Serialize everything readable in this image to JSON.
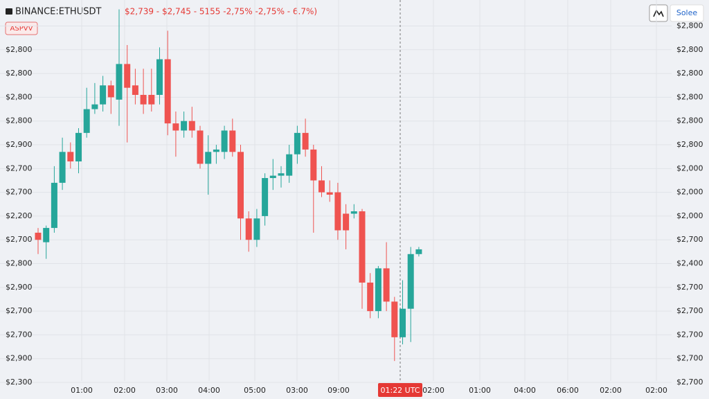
{
  "header": {
    "symbol": "BINANCE:ETHUSDT",
    "ohlc_text": "$2,739 - $2,745 - 5155 -2,75% -2,75% - 6.7%)",
    "badge": "ASPVV",
    "button": "Solee"
  },
  "chart_data": {
    "type": "candlestick",
    "up_color": "#26a69a",
    "down_color": "#ef5350",
    "grid": true,
    "open": [
      6.3,
      5.9,
      6.5,
      8.4,
      9.7,
      9.3,
      10.5,
      11.5,
      11.7,
      12.5,
      11.9,
      13.4,
      12.5,
      12.1,
      12.1,
      12.1,
      13.6,
      10.9,
      10.6,
      11.0,
      10.6,
      9.2,
      9.7,
      9.7,
      10.6,
      9.7,
      6.9,
      6.0,
      7.0,
      8.6,
      8.7,
      8.7,
      9.6,
      10.5,
      9.8,
      8.5,
      8.0,
      8.0,
      7.1,
      7.1,
      7.2,
      4.2,
      3.0,
      4.8,
      3.4,
      1.9,
      3.1,
      5.4
    ],
    "high": [
      6.5,
      6.6,
      9.1,
      10.3,
      10.1,
      10.7,
      12.4,
      12.6,
      12.9,
      12.7,
      15.7,
      14.2,
      13.2,
      13.2,
      13.2,
      14.1,
      14.8,
      11.4,
      11.4,
      11.6,
      10.8,
      10.4,
      10.0,
      10.8,
      11.1,
      10.0,
      7.2,
      7.3,
      8.8,
      9.4,
      9.1,
      10.0,
      10.8,
      11.1,
      10.0,
      9.1,
      8.5,
      8.4,
      7.5,
      7.5,
      7.3,
      4.6,
      4.9,
      5.9,
      3.6,
      4.3,
      5.7,
      5.7
    ],
    "low": [
      5.4,
      5.2,
      6.3,
      8.1,
      9.0,
      8.8,
      10.3,
      11.3,
      11.4,
      11.3,
      10.8,
      10.1,
      11.7,
      11.3,
      11.4,
      11.7,
      10.4,
      9.5,
      10.3,
      10.3,
      9.0,
      7.9,
      9.2,
      9.4,
      9.5,
      6.0,
      5.5,
      5.7,
      6.6,
      8.1,
      8.2,
      8.4,
      9.2,
      9.5,
      6.3,
      7.8,
      7.6,
      6.0,
      5.6,
      6.9,
      3.1,
      2.7,
      2.7,
      3.0,
      0.9,
      1.6,
      1.7,
      5.3
    ],
    "close": [
      6.0,
      6.5,
      8.4,
      9.7,
      9.3,
      10.5,
      11.5,
      11.7,
      12.5,
      12.0,
      13.4,
      12.4,
      12.1,
      11.7,
      11.7,
      13.6,
      10.9,
      10.6,
      11.0,
      10.6,
      9.2,
      9.7,
      9.8,
      10.6,
      9.7,
      6.9,
      6.0,
      6.9,
      8.6,
      8.7,
      8.8,
      9.6,
      10.5,
      9.8,
      8.5,
      8.0,
      7.9,
      6.4,
      6.4,
      7.2,
      4.2,
      3.0,
      4.8,
      3.4,
      1.9,
      3.1,
      5.4,
      5.6
    ],
    "ylim": [
      -0.6,
      15.7
    ],
    "yticks": [
      {
        "value": 14,
        "label": "$2,800"
      },
      {
        "value": 13,
        "label": "$2,800"
      },
      {
        "value": 12,
        "label": "$2,800"
      },
      {
        "value": 11,
        "label": "$2,800"
      },
      {
        "value": 10,
        "label": "$2,900"
      },
      {
        "value": 9,
        "label": "$2,700"
      },
      {
        "value": 8,
        "label": "$2,700"
      },
      {
        "value": 7,
        "label": "$2,200"
      },
      {
        "value": 6,
        "label": "$2,700"
      },
      {
        "value": 5,
        "label": "$2,800"
      },
      {
        "value": 4,
        "label": "$2,900"
      },
      {
        "value": 3,
        "label": "$2,700"
      },
      {
        "value": 2,
        "label": "$2,700"
      },
      {
        "value": 1,
        "label": "$2,900"
      },
      {
        "value": 0,
        "label": "$2,300"
      }
    ],
    "y2lim": [
      -0.6,
      15.7
    ],
    "y2ticks": [
      {
        "value": 15,
        "label": "$2,800"
      },
      {
        "value": 14,
        "label": "$2,800"
      },
      {
        "value": 13,
        "label": "$2,800"
      },
      {
        "value": 12,
        "label": "$2,800"
      },
      {
        "value": 11,
        "label": "$2,800"
      },
      {
        "value": 10,
        "label": "$2,800"
      },
      {
        "value": 9,
        "label": "$2,000"
      },
      {
        "value": 8,
        "label": "$2,000"
      },
      {
        "value": 7,
        "label": "$2,000"
      },
      {
        "value": 6,
        "label": "$2,700"
      },
      {
        "value": 5,
        "label": "$2,400"
      },
      {
        "value": 4,
        "label": "$2,700"
      },
      {
        "value": 3,
        "label": "$2,700"
      },
      {
        "value": 2,
        "label": "$2,700"
      },
      {
        "value": 1,
        "label": "$2,700"
      },
      {
        "value": 0,
        "label": "$2,700"
      }
    ],
    "x_labels": [
      "01:00",
      "02:00",
      "03:00",
      "04:00",
      "05:00",
      "03:00",
      "09:00",
      "02:00",
      "01:00",
      "04:00",
      "06:00",
      "02:00",
      "02:00"
    ],
    "crosshair_label": "01:22 UTC"
  }
}
